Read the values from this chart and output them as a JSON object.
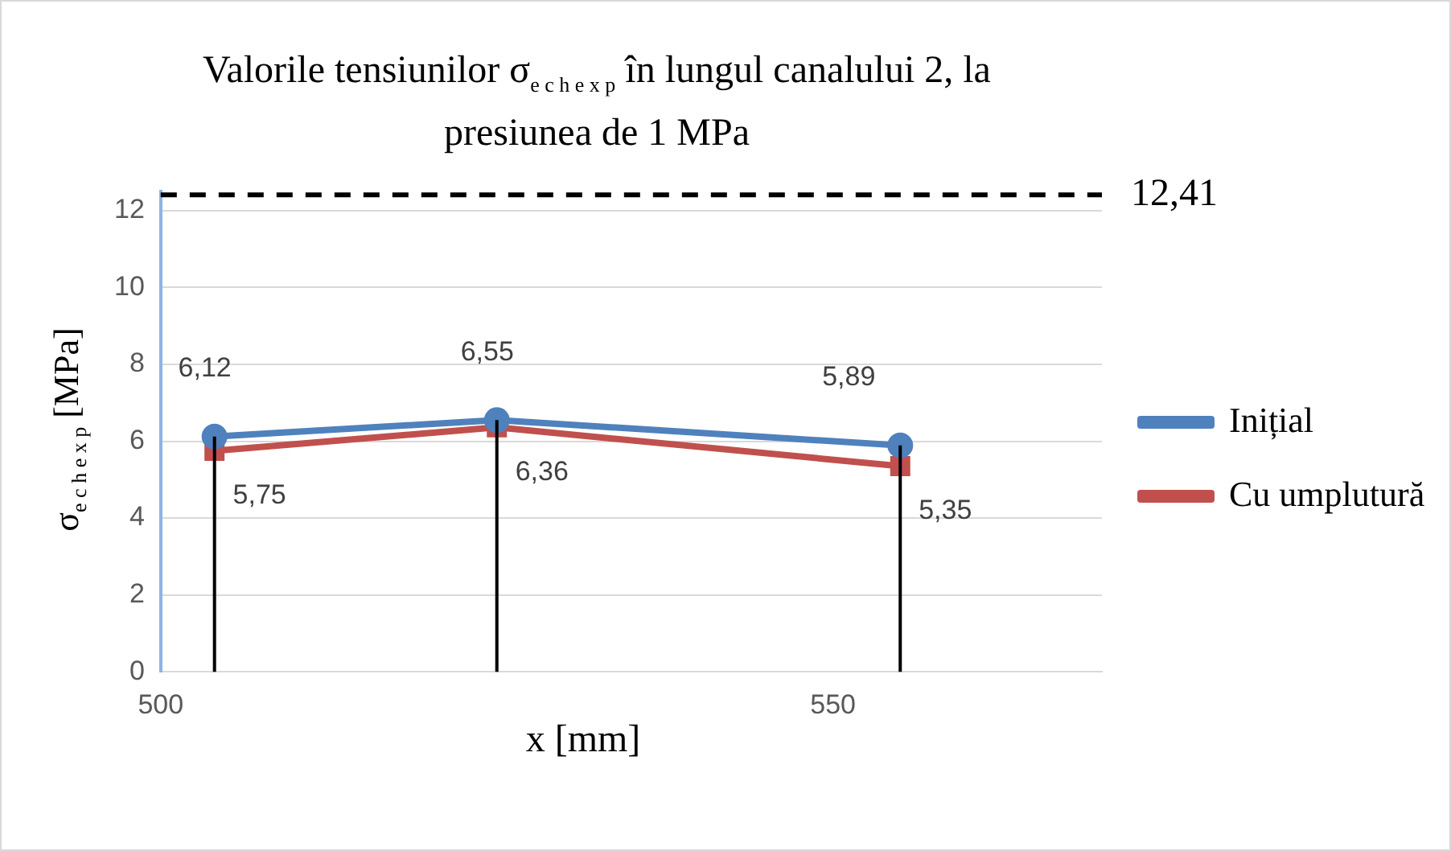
{
  "chart_data": {
    "type": "line",
    "title": "Valorile tensiunilor σ$_{e c h   e x p}$ în lungul canalului 2, la presiunea de 1 MPa",
    "xlabel": "x [mm]",
    "ylabel": "σ$_{e c h   e x p}$ [MPa]",
    "x": [
      504,
      525,
      555
    ],
    "series": [
      {
        "name": "Inițial",
        "color": "#4f81bd",
        "marker": "circle",
        "values": [
          6.12,
          6.55,
          5.89
        ],
        "value_labels": [
          "6,12",
          "6,55",
          "5,89"
        ]
      },
      {
        "name": "Cu umplutură",
        "color": "#c0504d",
        "marker": "square",
        "values": [
          5.75,
          6.36,
          5.35
        ],
        "value_labels": [
          "5,75",
          "6,36",
          "5,35"
        ]
      }
    ],
    "xlim": [
      500,
      570
    ],
    "xticks": [
      500,
      550
    ],
    "ylim": [
      0,
      12.5
    ],
    "yticks": [
      0,
      2,
      4,
      6,
      8,
      10,
      12
    ],
    "ref_lines": [
      {
        "axis": "y",
        "value": 12.41,
        "label": "12,41",
        "color": "#000000",
        "line_style": "dashed"
      },
      {
        "axis": "x",
        "value": 504,
        "color": "#000000",
        "line_style": "solid"
      },
      {
        "axis": "x",
        "value": 525,
        "color": "#000000",
        "line_style": "solid"
      },
      {
        "axis": "x",
        "value": 555,
        "color": "#000000",
        "line_style": "solid"
      }
    ],
    "grid": "y",
    "legend": "right"
  }
}
